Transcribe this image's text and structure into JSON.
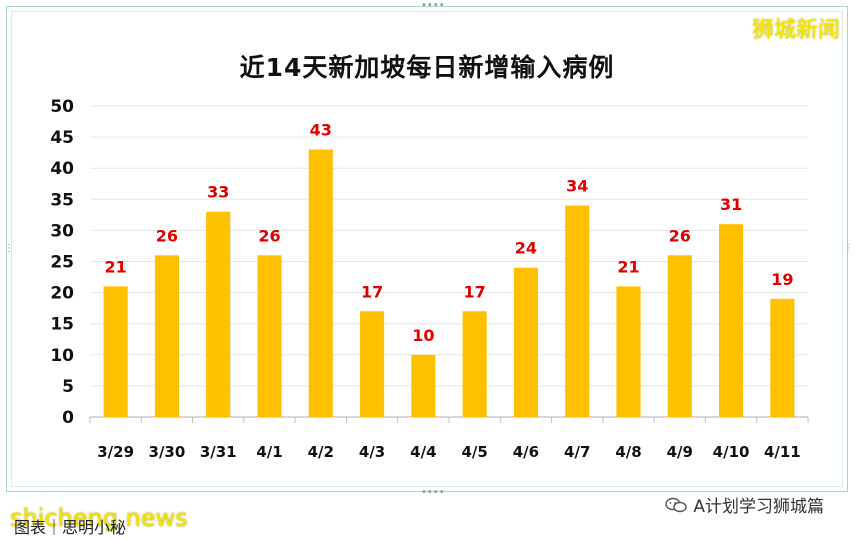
{
  "brand": "狮城新闻",
  "watermark": "shicheng.news",
  "source_text": "图表｜思明小秘",
  "wechat_account": "A计划学习狮城篇",
  "icons": {
    "wechat": "wechat-icon"
  },
  "colors": {
    "bar": "#FFC000",
    "data_label": "#E00000",
    "brand": "#F2E600"
  },
  "chart_data": {
    "type": "bar",
    "title": "近14天新加坡每日新增输入病例",
    "categories": [
      "3/29",
      "3/30",
      "3/31",
      "4/1",
      "4/2",
      "4/3",
      "4/4",
      "4/5",
      "4/6",
      "4/7",
      "4/8",
      "4/9",
      "4/10",
      "4/11"
    ],
    "values": [
      21,
      26,
      33,
      26,
      43,
      17,
      10,
      17,
      24,
      34,
      21,
      26,
      31,
      19
    ],
    "ylim": [
      0,
      50
    ],
    "yticks": [
      0,
      5,
      10,
      15,
      20,
      25,
      30,
      35,
      40,
      45,
      50
    ],
    "xlabel": "",
    "ylabel": "",
    "grid": true,
    "data_labels": true
  }
}
